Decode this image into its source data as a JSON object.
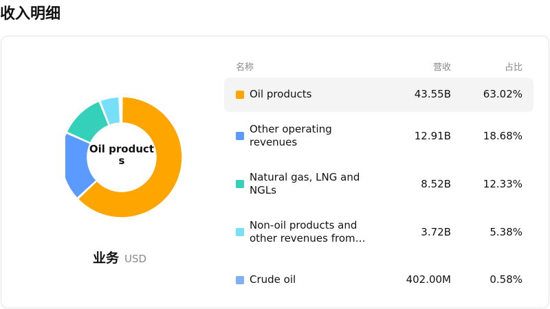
{
  "title": "收入明细",
  "caption": {
    "main": "业务",
    "unit": "USD"
  },
  "center_label": "Oil products",
  "headers": {
    "name": "名称",
    "revenue": "营收",
    "share": "占比"
  },
  "rows": [
    {
      "name": "Oil products",
      "revenue": "43.55B",
      "share": "63.02%",
      "color": "#FFA500"
    },
    {
      "name": "Other operating revenues",
      "revenue": "12.91B",
      "share": "18.68%",
      "color": "#5B9BFF"
    },
    {
      "name": "Natural gas, LNG and NGLs",
      "revenue": "8.52B",
      "share": "12.33%",
      "color": "#35D0BA"
    },
    {
      "name": "Non-oil products and other revenues from…",
      "revenue": "3.72B",
      "share": "5.38%",
      "color": "#78DFF8"
    },
    {
      "name": "Crude oil",
      "revenue": "402.00M",
      "share": "0.58%",
      "color": "#7FB0F5"
    }
  ],
  "chart_data": {
    "type": "pie",
    "donut": true,
    "categories": [
      "Oil products",
      "Other operating revenues",
      "Natural gas, LNG and NGLs",
      "Non-oil products and other revenues from…",
      "Crude oil"
    ],
    "values": [
      63.02,
      18.68,
      12.33,
      5.38,
      0.58
    ],
    "colors": [
      "#FFA500",
      "#5B9BFF",
      "#35D0BA",
      "#78DFF8",
      "#7FB0F5"
    ]
  }
}
